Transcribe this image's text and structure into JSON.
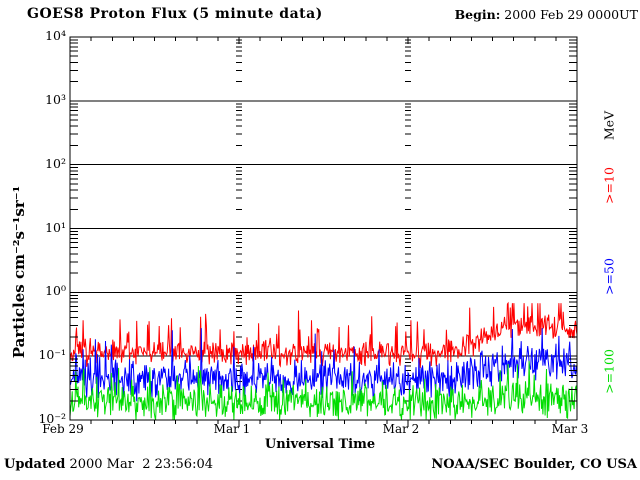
{
  "header": {
    "begin_label": "Begin:",
    "begin_value": " 2000 Feb 29 0000UT"
  },
  "footer": {
    "updated_label": "Updated",
    "updated_value": " 2000 Mar  2 23:56:04",
    "credit": "NOAA/SEC Boulder, CO USA"
  },
  "legend": {
    "unit_label": "MeV",
    "unit_color": "#000000",
    "items": [
      {
        "label": ">=10",
        "color": "#ff0000"
      },
      {
        "label": ">=50",
        "color": "#0000ff"
      },
      {
        "label": ">=100",
        "color": "#00dd00"
      }
    ]
  },
  "chart_data": {
    "type": "line",
    "title": "GOES8 Proton Flux (5 minute data)",
    "begin": "2000 Feb 29 0000UT",
    "updated": "2000 Mar  2 23:56:04",
    "credit": "NOAA/SEC Boulder, CO USA",
    "xlabel": "Universal Time",
    "ylabel": "Particles cm⁻²s⁻¹sr⁻¹",
    "x_axis": {
      "tick_labels": [
        "Feb 29",
        "Mar 1",
        "Mar 2",
        "Mar 3"
      ],
      "span_days": 3,
      "minor_tick_hours": 3
    },
    "y_axis": {
      "log10_min": -2,
      "log10_max": 4,
      "tick_labels": [
        "10⁴",
        "10³",
        "10²",
        "10¹",
        "10⁰",
        "10⁻¹",
        "10⁻²"
      ],
      "grid_decades": true,
      "day_boundary_minor_dash_columns": true
    },
    "sample_interval_minutes": 5,
    "legend_position": "right-rotated",
    "series": [
      {
        "name": ">=10",
        "unit": "MeV",
        "color": "#ff0000",
        "median_log10_keyframes_hours": [
          [
            0,
            -0.95
          ],
          [
            53,
            -0.95
          ],
          [
            58,
            -0.78
          ],
          [
            62,
            -0.55
          ],
          [
            72,
            -0.52
          ]
        ],
        "noise_dex": 0.12,
        "spike_rate": 0.08,
        "spike_dex": 0.45,
        "log10_max": -0.17,
        "log10_min": -2,
        "seed": 11
      },
      {
        "name": ">=50",
        "unit": "MeV",
        "color": "#0000ff",
        "median_log10_keyframes_hours": [
          [
            0,
            -1.36
          ],
          [
            54,
            -1.36
          ],
          [
            60,
            -1.18
          ],
          [
            66,
            -1.05
          ],
          [
            72,
            -1.08
          ]
        ],
        "noise_dex": 0.18,
        "spike_rate": 0.05,
        "spike_dex": 0.45,
        "log10_max": -0.56,
        "log10_min": -2,
        "seed": 22
      },
      {
        "name": ">=100",
        "unit": "MeV",
        "color": "#00dd00",
        "median_log10_keyframes_hours": [
          [
            0,
            -1.72
          ],
          [
            56,
            -1.72
          ],
          [
            62,
            -1.66
          ],
          [
            72,
            -1.68
          ]
        ],
        "noise_dex": 0.17,
        "spike_rate": 0.05,
        "spike_dex": 0.4,
        "log10_max": -1.03,
        "log10_min": -2,
        "seed": 33
      }
    ]
  }
}
